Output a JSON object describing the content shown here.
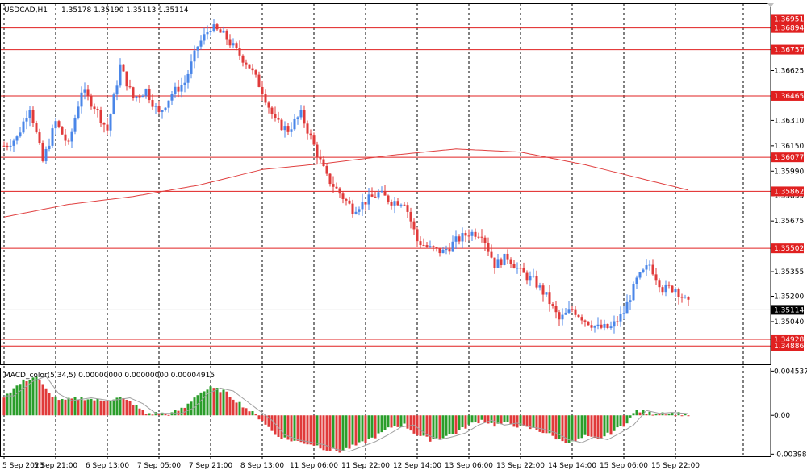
{
  "chart_data": [
    {
      "type": "candlestick",
      "header": {
        "symbol": "USDCAD,H1",
        "ohlc": "1.35178 1.35190 1.35113 1.35114"
      },
      "ylim": [
        1.3477,
        1.3705
      ],
      "y_ticks": [
        "1.36625",
        "1.36310",
        "1.36150",
        "1.35990",
        "1.35835",
        "1.35675",
        "1.35355",
        "1.35200",
        "1.35040"
      ],
      "y_tick_values": [
        1.36625,
        1.3631,
        1.3615,
        1.3599,
        1.35835,
        1.35675,
        1.35355,
        1.352,
        1.3504
      ],
      "levels": [
        {
          "label": "1.36951",
          "value": 1.36951
        },
        {
          "label": "1.36894",
          "value": 1.36894
        },
        {
          "label": "1.36757",
          "value": 1.36757
        },
        {
          "label": "1.36465",
          "value": 1.36465
        },
        {
          "label": "1.36077",
          "value": 1.36077
        },
        {
          "label": "1.35862",
          "value": 1.35862
        },
        {
          "label": "1.35502",
          "value": 1.35502
        },
        {
          "label": "1.34928",
          "value": 1.34928
        },
        {
          "label": "1.34886",
          "value": 1.34886
        }
      ],
      "current_price": {
        "label": "1.35114",
        "value": 1.35114
      },
      "price_anchors": [
        [
          0,
          1.3615
        ],
        [
          4,
          1.362
        ],
        [
          8,
          1.364
        ],
        [
          12,
          1.3605
        ],
        [
          16,
          1.363
        ],
        [
          20,
          1.3615
        ],
        [
          24,
          1.365
        ],
        [
          28,
          1.364
        ],
        [
          32,
          1.3625
        ],
        [
          36,
          1.3665
        ],
        [
          40,
          1.3645
        ],
        [
          44,
          1.365
        ],
        [
          48,
          1.3635
        ],
        [
          52,
          1.3648
        ],
        [
          56,
          1.3655
        ],
        [
          60,
          1.3678
        ],
        [
          64,
          1.369
        ],
        [
          68,
          1.3685
        ],
        [
          72,
          1.3675
        ],
        [
          76,
          1.3665
        ],
        [
          80,
          1.365
        ],
        [
          84,
          1.363
        ],
        [
          88,
          1.3625
        ],
        [
          92,
          1.3635
        ],
        [
          96,
          1.3615
        ],
        [
          100,
          1.3595
        ],
        [
          104,
          1.3585
        ],
        [
          108,
          1.3575
        ],
        [
          112,
          1.358
        ],
        [
          116,
          1.3585
        ],
        [
          120,
          1.358
        ],
        [
          124,
          1.358
        ],
        [
          128,
          1.3555
        ],
        [
          132,
          1.355
        ],
        [
          136,
          1.3548
        ],
        [
          140,
          1.3555
        ],
        [
          144,
          1.356
        ],
        [
          148,
          1.356
        ],
        [
          152,
          1.354
        ],
        [
          156,
          1.3545
        ],
        [
          160,
          1.3535
        ],
        [
          164,
          1.353
        ],
        [
          168,
          1.352
        ],
        [
          172,
          1.3505
        ],
        [
          176,
          1.3512
        ],
        [
          180,
          1.3505
        ],
        [
          184,
          1.35
        ],
        [
          188,
          1.35
        ],
        [
          192,
          1.351
        ],
        [
          196,
          1.353
        ],
        [
          200,
          1.354
        ],
        [
          204,
          1.3525
        ],
        [
          208,
          1.3525
        ],
        [
          212,
          1.3515
        ]
      ],
      "moving_average": [
        [
          0,
          1.357
        ],
        [
          20,
          1.3578
        ],
        [
          40,
          1.3583
        ],
        [
          60,
          1.359
        ],
        [
          80,
          1.36
        ],
        [
          100,
          1.3604
        ],
        [
          120,
          1.3609
        ],
        [
          140,
          1.3613
        ],
        [
          160,
          1.3611
        ],
        [
          180,
          1.3603
        ],
        [
          200,
          1.3593
        ],
        [
          212,
          1.3587
        ]
      ]
    },
    {
      "type": "bar",
      "title": "MACD_color(5,34,5) 0.00000000 0.00000000 0.00004915",
      "ylim": [
        -0.0042,
        0.0049
      ],
      "y_ticks": [
        "0.0045375",
        "0.00",
        "-0.0039800"
      ],
      "y_tick_values": [
        0.0045375,
        0.0,
        -0.00398
      ],
      "histogram_anchors": [
        [
          0,
          0.002
        ],
        [
          6,
          0.0035
        ],
        [
          10,
          0.004
        ],
        [
          14,
          0.0022
        ],
        [
          18,
          0.0015
        ],
        [
          24,
          0.0018
        ],
        [
          30,
          0.0015
        ],
        [
          36,
          0.0018
        ],
        [
          40,
          0.0012
        ],
        [
          44,
          0.0002
        ],
        [
          52,
          0.0002
        ],
        [
          56,
          0.0008
        ],
        [
          60,
          0.0022
        ],
        [
          64,
          0.0028
        ],
        [
          68,
          0.0025
        ],
        [
          72,
          0.0015
        ],
        [
          76,
          0.0005
        ],
        [
          80,
          -0.0005
        ],
        [
          84,
          -0.002
        ],
        [
          88,
          -0.0025
        ],
        [
          96,
          -0.003
        ],
        [
          100,
          -0.0035
        ],
        [
          104,
          -0.0037
        ],
        [
          108,
          -0.0032
        ],
        [
          112,
          -0.0027
        ],
        [
          116,
          -0.002
        ],
        [
          120,
          -0.0012
        ],
        [
          124,
          -0.001
        ],
        [
          128,
          -0.002
        ],
        [
          132,
          -0.0025
        ],
        [
          136,
          -0.0022
        ],
        [
          140,
          -0.0018
        ],
        [
          144,
          -0.001
        ],
        [
          148,
          -0.0005
        ],
        [
          152,
          -0.001
        ],
        [
          156,
          -0.0008
        ],
        [
          160,
          -0.0012
        ],
        [
          164,
          -0.0014
        ],
        [
          168,
          -0.0018
        ],
        [
          172,
          -0.0025
        ],
        [
          176,
          -0.0028
        ],
        [
          180,
          -0.0022
        ],
        [
          184,
          -0.0025
        ],
        [
          188,
          -0.0018
        ],
        [
          192,
          -0.001
        ],
        [
          196,
          0.0005
        ],
        [
          200,
          0.0002
        ],
        [
          204,
          0.0003
        ],
        [
          208,
          0.0002
        ],
        [
          212,
          0.0001
        ]
      ]
    }
  ],
  "time_axis": {
    "labels": [
      "5 Sep 2023",
      "5 Sep 21:00",
      "6 Sep 13:00",
      "7 Sep 05:00",
      "7 Sep 21:00",
      "8 Sep 13:00",
      "11 Sep 06:00",
      "11 Sep 22:00",
      "12 Sep 14:00",
      "13 Sep 06:00",
      "13 Sep 22:00",
      "14 Sep 14:00",
      "15 Sep 06:00",
      "15 Sep 22:00"
    ],
    "bar_index": [
      0,
      16,
      32,
      48,
      64,
      80,
      96,
      112,
      128,
      144,
      160,
      176,
      192,
      208
    ]
  },
  "colors": {
    "bull": "#4a86e8",
    "bear": "#e03a3a",
    "level_line": "#e02020",
    "moving_average": "#e04040",
    "macd_up": "#2a9d2a",
    "macd_down": "#e03a3a",
    "macd_signal": "#a0a0a0",
    "grid": "#000000"
  }
}
